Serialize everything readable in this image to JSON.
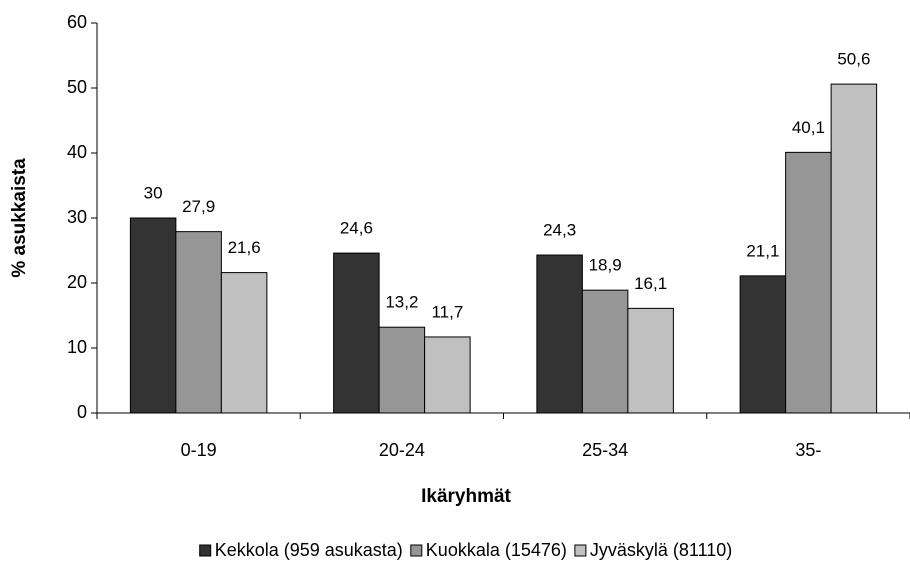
{
  "chart_data": {
    "type": "bar",
    "x_label": "Ikäryhmät",
    "y_label": "% asukkaista",
    "categories": [
      "0-19",
      "20-24",
      "25-34",
      "35-"
    ],
    "series": [
      {
        "name": "Kekkola (959 asukasta)",
        "color": "#333333",
        "values": [
          30,
          24.6,
          24.3,
          21.1
        ],
        "value_labels": [
          "30",
          "24,6",
          "24,3",
          "21,1"
        ]
      },
      {
        "name": "Kuokkala (15476)",
        "color": "#969696",
        "values": [
          27.9,
          13.2,
          18.9,
          40.1
        ],
        "value_labels": [
          "27,9",
          "13,2",
          "18,9",
          "40,1"
        ]
      },
      {
        "name": "Jyväskylä (81110)",
        "color": "#c0c0c0",
        "values": [
          21.6,
          11.7,
          16.1,
          50.6
        ],
        "value_labels": [
          "21,6",
          "11,7",
          "16,1",
          "50,6"
        ]
      }
    ],
    "ylim": [
      0,
      60
    ],
    "yticks": [
      0,
      10,
      20,
      30,
      40,
      50,
      60
    ],
    "grid": false,
    "legend": "bottom"
  }
}
